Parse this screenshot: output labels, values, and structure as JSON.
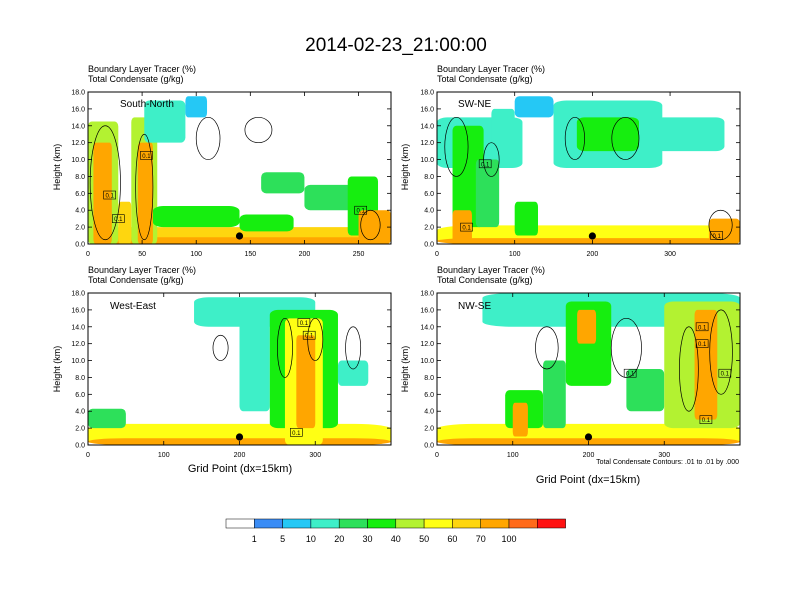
{
  "figure": {
    "title": "2014-02-23_21:00:00",
    "xlabel": "Grid Point (dx=15km)",
    "contour_caption": "Total Condensate Contours: .01 to .01 by .000"
  },
  "colorbar": {
    "colors": [
      "#ffffff",
      "#3a8cf5",
      "#25c8f5",
      "#3eefc8",
      "#2de05a",
      "#16ee0f",
      "#b3f231",
      "#ffff14",
      "#fed60f",
      "#ffa600",
      "#ff6a1a",
      "#ff1212"
    ],
    "labels": [
      "1",
      "5",
      "10",
      "20",
      "30",
      "40",
      "50",
      "60",
      "70",
      "100"
    ]
  },
  "chart_data": [
    {
      "type": "heatmap",
      "label": "South-North",
      "header1": "Boundary Layer Tracer   (%)",
      "header2": "Total Condensate   (g/kg)",
      "ylabel": "Height (km)",
      "ylim": [
        0,
        18
      ],
      "yticks": [
        "0.0",
        "2.0",
        "4.0",
        "6.0",
        "8.0",
        "10.0",
        "12.0",
        "14.0",
        "16.0",
        "18.0"
      ],
      "xlim": [
        0,
        280
      ],
      "xticks": [
        0,
        50,
        100,
        150,
        200,
        250
      ],
      "marker_x": 140,
      "shaded_field": "Boundary Layer Tracer (%)",
      "contour_field": "Total Condensate (g/kg)",
      "features": [
        {
          "x0": 0,
          "x1": 280,
          "z0": 0,
          "z1": 2.0,
          "v": 60
        },
        {
          "x0": 0,
          "x1": 280,
          "z0": 0,
          "z1": 0.8,
          "v": 90
        },
        {
          "x0": 0,
          "x1": 28,
          "z0": 0,
          "z1": 14.5,
          "v": 45
        },
        {
          "x0": 5,
          "x1": 22,
          "z0": 0,
          "z1": 12,
          "v": 78
        },
        {
          "x0": 40,
          "x1": 64,
          "z0": 0,
          "z1": 15,
          "v": 45
        },
        {
          "x0": 46,
          "x1": 60,
          "z0": 0,
          "z1": 12,
          "v": 75
        },
        {
          "x0": 28,
          "x1": 40,
          "z0": 0,
          "z1": 5,
          "v": 62
        },
        {
          "x0": 52,
          "x1": 90,
          "z0": 12,
          "z1": 17,
          "v": 12
        },
        {
          "x0": 90,
          "x1": 110,
          "z0": 15,
          "z1": 17.5,
          "v": 6
        },
        {
          "x0": 60,
          "x1": 140,
          "z0": 2,
          "z1": 4.5,
          "v": 35
        },
        {
          "x0": 140,
          "x1": 190,
          "z0": 1.5,
          "z1": 3.5,
          "v": 30
        },
        {
          "x0": 160,
          "x1": 200,
          "z0": 6,
          "z1": 8.5,
          "v": 20
        },
        {
          "x0": 200,
          "x1": 245,
          "z0": 4,
          "z1": 7,
          "v": 22
        },
        {
          "x0": 240,
          "x1": 268,
          "z0": 1,
          "z1": 8,
          "v": 32
        },
        {
          "x0": 250,
          "x1": 280,
          "z0": 0,
          "z1": 4,
          "v": 80
        }
      ],
      "contours": [
        {
          "x0": 2,
          "x1": 30,
          "z0": 0.5,
          "z1": 14
        },
        {
          "x0": 44,
          "x1": 60,
          "z0": 0.5,
          "z1": 13
        },
        {
          "x0": 100,
          "x1": 122,
          "z0": 10,
          "z1": 15
        },
        {
          "x0": 145,
          "x1": 170,
          "z0": 12,
          "z1": 15
        },
        {
          "x0": 252,
          "x1": 270,
          "z0": 0.5,
          "z1": 4
        }
      ],
      "contour_labels": [
        {
          "text": "0.1",
          "x": 20,
          "z": 5.8
        },
        {
          "text": "0.1",
          "x": 54,
          "z": 10.5
        },
        {
          "text": "0.1",
          "x": 28,
          "z": 3.0
        },
        {
          "text": "0.1",
          "x": 252,
          "z": 4.0
        }
      ]
    },
    {
      "type": "heatmap",
      "label": "SW-NE",
      "header1": "Boundary Layer Tracer   (%)",
      "header2": "Total Condensate   (g/kg)",
      "ylabel": "Height (km)",
      "ylim": [
        0,
        18
      ],
      "yticks": [
        "0.0",
        "2.0",
        "4.0",
        "6.0",
        "8.0",
        "10.0",
        "12.0",
        "14.0",
        "16.0",
        "18.0"
      ],
      "xlim": [
        0,
        390
      ],
      "xticks": [
        0,
        100,
        200,
        300
      ],
      "marker_x": 200,
      "shaded_field": "Boundary Layer Tracer (%)",
      "contour_field": "Total Condensate (g/kg)",
      "features": [
        {
          "x0": 0,
          "x1": 390,
          "z0": 0,
          "z1": 2.2,
          "v": 55
        },
        {
          "x0": 0,
          "x1": 390,
          "z0": 0,
          "z1": 0.7,
          "v": 88
        },
        {
          "x0": 0,
          "x1": 110,
          "z0": 9,
          "z1": 15,
          "v": 18
        },
        {
          "x0": 20,
          "x1": 60,
          "z0": 2,
          "z1": 14,
          "v": 32
        },
        {
          "x0": 50,
          "x1": 80,
          "z0": 2,
          "z1": 10,
          "v": 28
        },
        {
          "x0": 70,
          "x1": 100,
          "z0": 10,
          "z1": 16,
          "v": 15
        },
        {
          "x0": 100,
          "x1": 150,
          "z0": 15,
          "z1": 17.5,
          "v": 8
        },
        {
          "x0": 150,
          "x1": 290,
          "z0": 9,
          "z1": 17,
          "v": 12
        },
        {
          "x0": 180,
          "x1": 260,
          "z0": 11,
          "z1": 15,
          "v": 30
        },
        {
          "x0": 280,
          "x1": 370,
          "z0": 11,
          "z1": 15,
          "v": 10
        },
        {
          "x0": 100,
          "x1": 130,
          "z0": 1,
          "z1": 5,
          "v": 30
        },
        {
          "x0": 350,
          "x1": 390,
          "z0": 0,
          "z1": 3,
          "v": 78
        },
        {
          "x0": 20,
          "x1": 45,
          "z0": 0,
          "z1": 4,
          "v": 72
        }
      ],
      "contours": [
        {
          "x0": 10,
          "x1": 40,
          "z0": 8,
          "z1": 15
        },
        {
          "x0": 60,
          "x1": 80,
          "z0": 8,
          "z1": 12
        },
        {
          "x0": 165,
          "x1": 190,
          "z0": 10,
          "z1": 15
        },
        {
          "x0": 225,
          "x1": 260,
          "z0": 10,
          "z1": 15
        },
        {
          "x0": 350,
          "x1": 380,
          "z0": 0.5,
          "z1": 4
        }
      ],
      "contour_labels": [
        {
          "text": "0.1",
          "x": 62,
          "z": 9.5
        },
        {
          "text": "0.1",
          "x": 38,
          "z": 2.0
        },
        {
          "text": "0.1",
          "x": 360,
          "z": 1.0
        }
      ]
    },
    {
      "type": "heatmap",
      "label": "West-East",
      "header1": "Boundary Layer Tracer   (%)",
      "header2": "Total Condensate   (g/kg)",
      "ylabel": "Height (km)",
      "ylim": [
        0,
        18
      ],
      "yticks": [
        "0.0",
        "2.0",
        "4.0",
        "6.0",
        "8.0",
        "10.0",
        "12.0",
        "14.0",
        "16.0",
        "18.0"
      ],
      "xlim": [
        0,
        400
      ],
      "xticks": [
        0,
        100,
        200,
        300
      ],
      "marker_x": 200,
      "shaded_field": "Boundary Layer Tracer (%)",
      "contour_field": "Total Condensate (g/kg)",
      "features": [
        {
          "x0": 0,
          "x1": 400,
          "z0": 0,
          "z1": 2.5,
          "v": 55
        },
        {
          "x0": 0,
          "x1": 400,
          "z0": 0,
          "z1": 0.8,
          "v": 88
        },
        {
          "x0": 0,
          "x1": 50,
          "z0": 2,
          "z1": 4.3,
          "v": 25
        },
        {
          "x0": 140,
          "x1": 300,
          "z0": 14,
          "z1": 17.5,
          "v": 10
        },
        {
          "x0": 200,
          "x1": 240,
          "z0": 4,
          "z1": 16,
          "v": 18
        },
        {
          "x0": 240,
          "x1": 330,
          "z0": 2,
          "z1": 16,
          "v": 30
        },
        {
          "x0": 260,
          "x1": 310,
          "z0": 0,
          "z1": 15,
          "v": 58
        },
        {
          "x0": 275,
          "x1": 300,
          "z0": 2,
          "z1": 13,
          "v": 82
        },
        {
          "x0": 330,
          "x1": 370,
          "z0": 7,
          "z1": 10,
          "v": 15
        }
      ],
      "contours": [
        {
          "x0": 165,
          "x1": 185,
          "z0": 10,
          "z1": 13
        },
        {
          "x0": 250,
          "x1": 270,
          "z0": 8,
          "z1": 15
        },
        {
          "x0": 290,
          "x1": 310,
          "z0": 10,
          "z1": 15
        },
        {
          "x0": 340,
          "x1": 360,
          "z0": 9,
          "z1": 14
        }
      ],
      "contour_labels": [
        {
          "text": "0.1",
          "x": 285,
          "z": 14.5
        },
        {
          "text": "0.1",
          "x": 292,
          "z": 13.0
        },
        {
          "text": "0.1",
          "x": 275,
          "z": 1.5
        }
      ]
    },
    {
      "type": "heatmap",
      "label": "NW-SE",
      "header1": "Boundary Layer Tracer   (%)",
      "header2": "Total Condensate   (g/kg)",
      "ylabel": "Height (km)",
      "ylim": [
        0,
        18
      ],
      "yticks": [
        "0.0",
        "2.0",
        "4.0",
        "6.0",
        "8.0",
        "10.0",
        "12.0",
        "14.0",
        "16.0",
        "18.0"
      ],
      "xlim": [
        0,
        400
      ],
      "xticks": [
        0,
        100,
        200,
        300
      ],
      "marker_x": 200,
      "shaded_field": "Boundary Layer Tracer (%)",
      "contour_field": "Total Condensate (g/kg)",
      "features": [
        {
          "x0": 0,
          "x1": 400,
          "z0": 0,
          "z1": 2.5,
          "v": 55
        },
        {
          "x0": 0,
          "x1": 400,
          "z0": 0,
          "z1": 0.8,
          "v": 88
        },
        {
          "x0": 60,
          "x1": 400,
          "z0": 14,
          "z1": 18,
          "v": 18
        },
        {
          "x0": 90,
          "x1": 140,
          "z0": 2,
          "z1": 6.5,
          "v": 32
        },
        {
          "x0": 100,
          "x1": 120,
          "z0": 1,
          "z1": 5,
          "v": 70
        },
        {
          "x0": 140,
          "x1": 170,
          "z0": 2,
          "z1": 10,
          "v": 28
        },
        {
          "x0": 170,
          "x1": 230,
          "z0": 7,
          "z1": 17,
          "v": 30
        },
        {
          "x0": 185,
          "x1": 210,
          "z0": 12,
          "z1": 16,
          "v": 85
        },
        {
          "x0": 250,
          "x1": 300,
          "z0": 4,
          "z1": 9,
          "v": 22
        },
        {
          "x0": 300,
          "x1": 400,
          "z0": 2,
          "z1": 17,
          "v": 40
        },
        {
          "x0": 340,
          "x1": 370,
          "z0": 3,
          "z1": 16,
          "v": 75
        }
      ],
      "contours": [
        {
          "x0": 130,
          "x1": 160,
          "z0": 9,
          "z1": 14
        },
        {
          "x0": 230,
          "x1": 270,
          "z0": 8,
          "z1": 15
        },
        {
          "x0": 320,
          "x1": 345,
          "z0": 4,
          "z1": 14
        },
        {
          "x0": 360,
          "x1": 390,
          "z0": 6,
          "z1": 16
        }
      ],
      "contour_labels": [
        {
          "text": "0.1",
          "x": 350,
          "z": 14.0
        },
        {
          "text": "0.1",
          "x": 255,
          "z": 8.5
        },
        {
          "text": "0.1",
          "x": 350,
          "z": 12.0
        },
        {
          "text": "0.1",
          "x": 380,
          "z": 8.5
        },
        {
          "text": "0.1",
          "x": 355,
          "z": 3.0
        }
      ]
    }
  ]
}
